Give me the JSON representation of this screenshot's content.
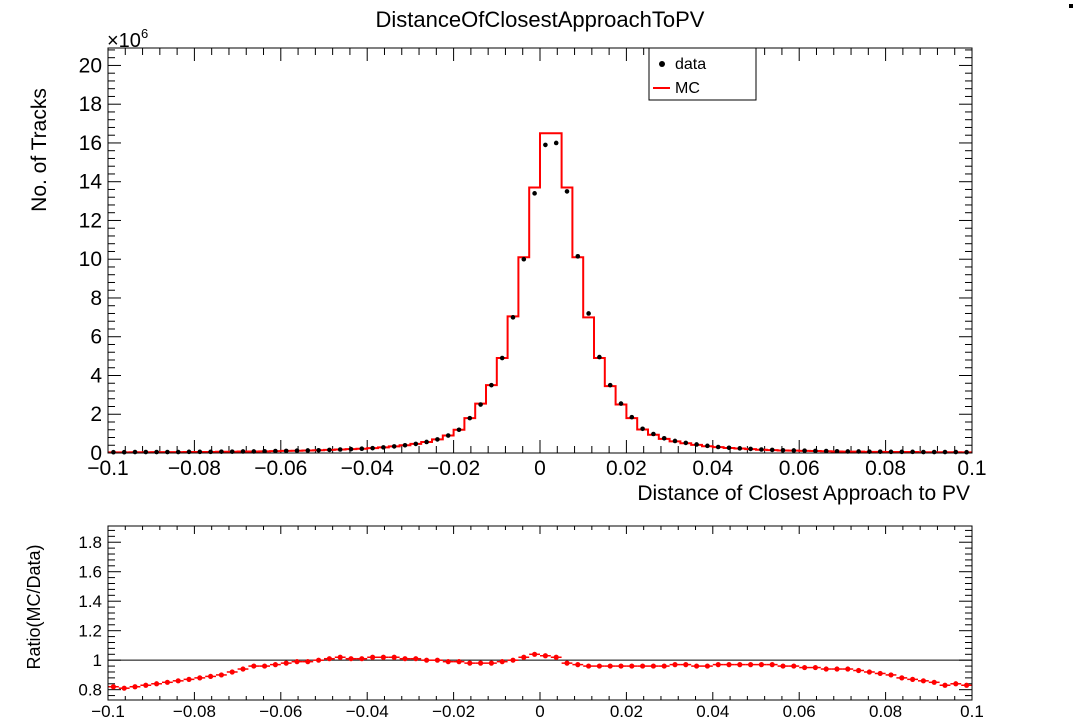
{
  "chart_data": [
    {
      "type": "histogram",
      "title": "DistanceOfClosestApproachToPV",
      "xlabel": "Distance of Closest Approach to PV",
      "ylabel": "No. of Tracks",
      "y_multiplier": "×10",
      "y_exponent": "6",
      "xlim": [
        -0.1,
        0.1
      ],
      "ylim": [
        0,
        20.9
      ],
      "xticks": [
        -0.1,
        -0.08,
        -0.06,
        -0.04,
        -0.02,
        0,
        0.02,
        0.04,
        0.06,
        0.08,
        0.1
      ],
      "xtick_labels": [
        "−0.1",
        "−0.08",
        "−0.06",
        "−0.04",
        "−0.02",
        "0",
        "0.02",
        "0.04",
        "0.06",
        "0.08",
        "0.1"
      ],
      "yticks": [
        0,
        2,
        4,
        6,
        8,
        10,
        12,
        14,
        16,
        18,
        20
      ],
      "ytick_labels": [
        "0",
        "2",
        "4",
        "6",
        "8",
        "10",
        "12",
        "14",
        "16",
        "18",
        "20"
      ],
      "legend": {
        "placement": "top-right",
        "entries": [
          "data",
          "MC"
        ]
      },
      "bin_width": 0.0025,
      "x": [
        -0.09875,
        -0.09625,
        -0.09375,
        -0.09125,
        -0.08875,
        -0.08625,
        -0.08375,
        -0.08125,
        -0.07875,
        -0.07625,
        -0.07375,
        -0.07125,
        -0.06875,
        -0.06625,
        -0.06375,
        -0.06125,
        -0.05875,
        -0.05625,
        -0.05375,
        -0.05125,
        -0.04875,
        -0.04625,
        -0.04375,
        -0.04125,
        -0.03875,
        -0.03625,
        -0.03375,
        -0.03125,
        -0.02875,
        -0.02625,
        -0.02375,
        -0.02125,
        -0.01875,
        -0.01625,
        -0.01375,
        -0.01125,
        -0.00875,
        -0.00625,
        -0.00375,
        -0.00125,
        0.00125,
        0.00375,
        0.00625,
        0.00875,
        0.01125,
        0.01375,
        0.01625,
        0.01875,
        0.02125,
        0.02375,
        0.02625,
        0.02875,
        0.03125,
        0.03375,
        0.03625,
        0.03875,
        0.04125,
        0.04375,
        0.04625,
        0.04875,
        0.05125,
        0.05375,
        0.05625,
        0.05875,
        0.06125,
        0.06375,
        0.06625,
        0.06875,
        0.07125,
        0.07375,
        0.07625,
        0.07875,
        0.08125,
        0.08375,
        0.08625,
        0.08875,
        0.09125,
        0.09375,
        0.09625,
        0.09875
      ],
      "series": [
        {
          "name": "data",
          "color": "#000000",
          "values": [
            0.04,
            0.04,
            0.05,
            0.05,
            0.05,
            0.05,
            0.05,
            0.06,
            0.06,
            0.06,
            0.07,
            0.07,
            0.08,
            0.08,
            0.09,
            0.1,
            0.11,
            0.12,
            0.13,
            0.14,
            0.16,
            0.18,
            0.2,
            0.22,
            0.25,
            0.29,
            0.34,
            0.4,
            0.47,
            0.57,
            0.7,
            0.9,
            1.2,
            1.8,
            2.5,
            3.5,
            4.9,
            7.0,
            10.0,
            13.4,
            15.9,
            16.0,
            13.5,
            10.15,
            7.2,
            4.95,
            3.5,
            2.55,
            1.85,
            1.25,
            0.98,
            0.76,
            0.62,
            0.52,
            0.44,
            0.37,
            0.31,
            0.27,
            0.24,
            0.21,
            0.18,
            0.16,
            0.14,
            0.13,
            0.12,
            0.11,
            0.1,
            0.09,
            0.08,
            0.08,
            0.07,
            0.07,
            0.06,
            0.06,
            0.06,
            0.05,
            0.05,
            0.05,
            0.05,
            0.04
          ]
        },
        {
          "name": "MC",
          "color": "#ff0000",
          "values": [
            0.033,
            0.033,
            0.041,
            0.041,
            0.042,
            0.043,
            0.044,
            0.052,
            0.053,
            0.054,
            0.064,
            0.065,
            0.075,
            0.077,
            0.087,
            0.097,
            0.107,
            0.116,
            0.127,
            0.14,
            0.16,
            0.18,
            0.2,
            0.22,
            0.25,
            0.29,
            0.34,
            0.4,
            0.47,
            0.57,
            0.7,
            0.9,
            1.2,
            1.8,
            2.55,
            3.5,
            4.9,
            7.05,
            10.1,
            13.7,
            16.5,
            16.5,
            13.7,
            10.1,
            7.0,
            4.9,
            3.45,
            2.5,
            1.8,
            1.21,
            0.94,
            0.73,
            0.6,
            0.5,
            0.42,
            0.35,
            0.3,
            0.26,
            0.23,
            0.2,
            0.17,
            0.15,
            0.13,
            0.12,
            0.11,
            0.1,
            0.09,
            0.08,
            0.07,
            0.07,
            0.06,
            0.06,
            0.05,
            0.05,
            0.05,
            0.04,
            0.04,
            0.04,
            0.04,
            0.03
          ]
        }
      ]
    },
    {
      "type": "scatter",
      "ylabel": "Ratio(MC/Data)",
      "xlim": [
        -0.1,
        0.1
      ],
      "ylim": [
        0.73,
        1.91
      ],
      "xticks": [
        -0.1,
        -0.08,
        -0.06,
        -0.04,
        -0.02,
        0,
        0.02,
        0.04,
        0.06,
        0.08,
        0.1
      ],
      "xtick_labels": [
        "−0.1",
        "−0.08",
        "−0.06",
        "−0.04",
        "−0.02",
        "0",
        "0.02",
        "0.04",
        "0.06",
        "0.08",
        "0.1"
      ],
      "yticks": [
        0.8,
        1,
        1.2,
        1.4,
        1.6,
        1.8
      ],
      "ytick_labels": [
        "0.8",
        "1",
        "1.2",
        "1.4",
        "1.6",
        "1.8"
      ],
      "reference_line": 1,
      "x": [
        -0.09875,
        -0.09625,
        -0.09375,
        -0.09125,
        -0.08875,
        -0.08625,
        -0.08375,
        -0.08125,
        -0.07875,
        -0.07625,
        -0.07375,
        -0.07125,
        -0.06875,
        -0.06625,
        -0.06375,
        -0.06125,
        -0.05875,
        -0.05625,
        -0.05375,
        -0.05125,
        -0.04875,
        -0.04625,
        -0.04375,
        -0.04125,
        -0.03875,
        -0.03625,
        -0.03375,
        -0.03125,
        -0.02875,
        -0.02625,
        -0.02375,
        -0.02125,
        -0.01875,
        -0.01625,
        -0.01375,
        -0.01125,
        -0.00875,
        -0.00625,
        -0.00375,
        -0.00125,
        0.00125,
        0.00375,
        0.00625,
        0.00875,
        0.01125,
        0.01375,
        0.01625,
        0.01875,
        0.02125,
        0.02375,
        0.02625,
        0.02875,
        0.03125,
        0.03375,
        0.03625,
        0.03875,
        0.04125,
        0.04375,
        0.04625,
        0.04875,
        0.05125,
        0.05375,
        0.05625,
        0.05875,
        0.06125,
        0.06375,
        0.06625,
        0.06875,
        0.07125,
        0.07375,
        0.07625,
        0.07875,
        0.08125,
        0.08375,
        0.08625,
        0.08875,
        0.09125,
        0.09375,
        0.09625,
        0.09875
      ],
      "series": [
        {
          "name": "",
          "color": "#ff0000",
          "values": [
            0.82,
            0.81,
            0.82,
            0.83,
            0.84,
            0.85,
            0.86,
            0.87,
            0.88,
            0.89,
            0.9,
            0.92,
            0.94,
            0.96,
            0.96,
            0.97,
            0.98,
            0.99,
            0.99,
            1.0,
            1.01,
            1.02,
            1.01,
            1.01,
            1.02,
            1.02,
            1.02,
            1.01,
            1.01,
            1.0,
            1.0,
            0.99,
            0.99,
            0.98,
            0.98,
            0.98,
            0.99,
            1.0,
            1.02,
            1.04,
            1.03,
            1.02,
            0.98,
            0.97,
            0.96,
            0.96,
            0.96,
            0.96,
            0.96,
            0.96,
            0.96,
            0.96,
            0.97,
            0.97,
            0.96,
            0.96,
            0.97,
            0.97,
            0.97,
            0.97,
            0.97,
            0.97,
            0.96,
            0.96,
            0.95,
            0.95,
            0.94,
            0.94,
            0.94,
            0.93,
            0.92,
            0.91,
            0.9,
            0.88,
            0.87,
            0.86,
            0.85,
            0.83,
            0.84,
            0.83
          ]
        }
      ]
    }
  ]
}
